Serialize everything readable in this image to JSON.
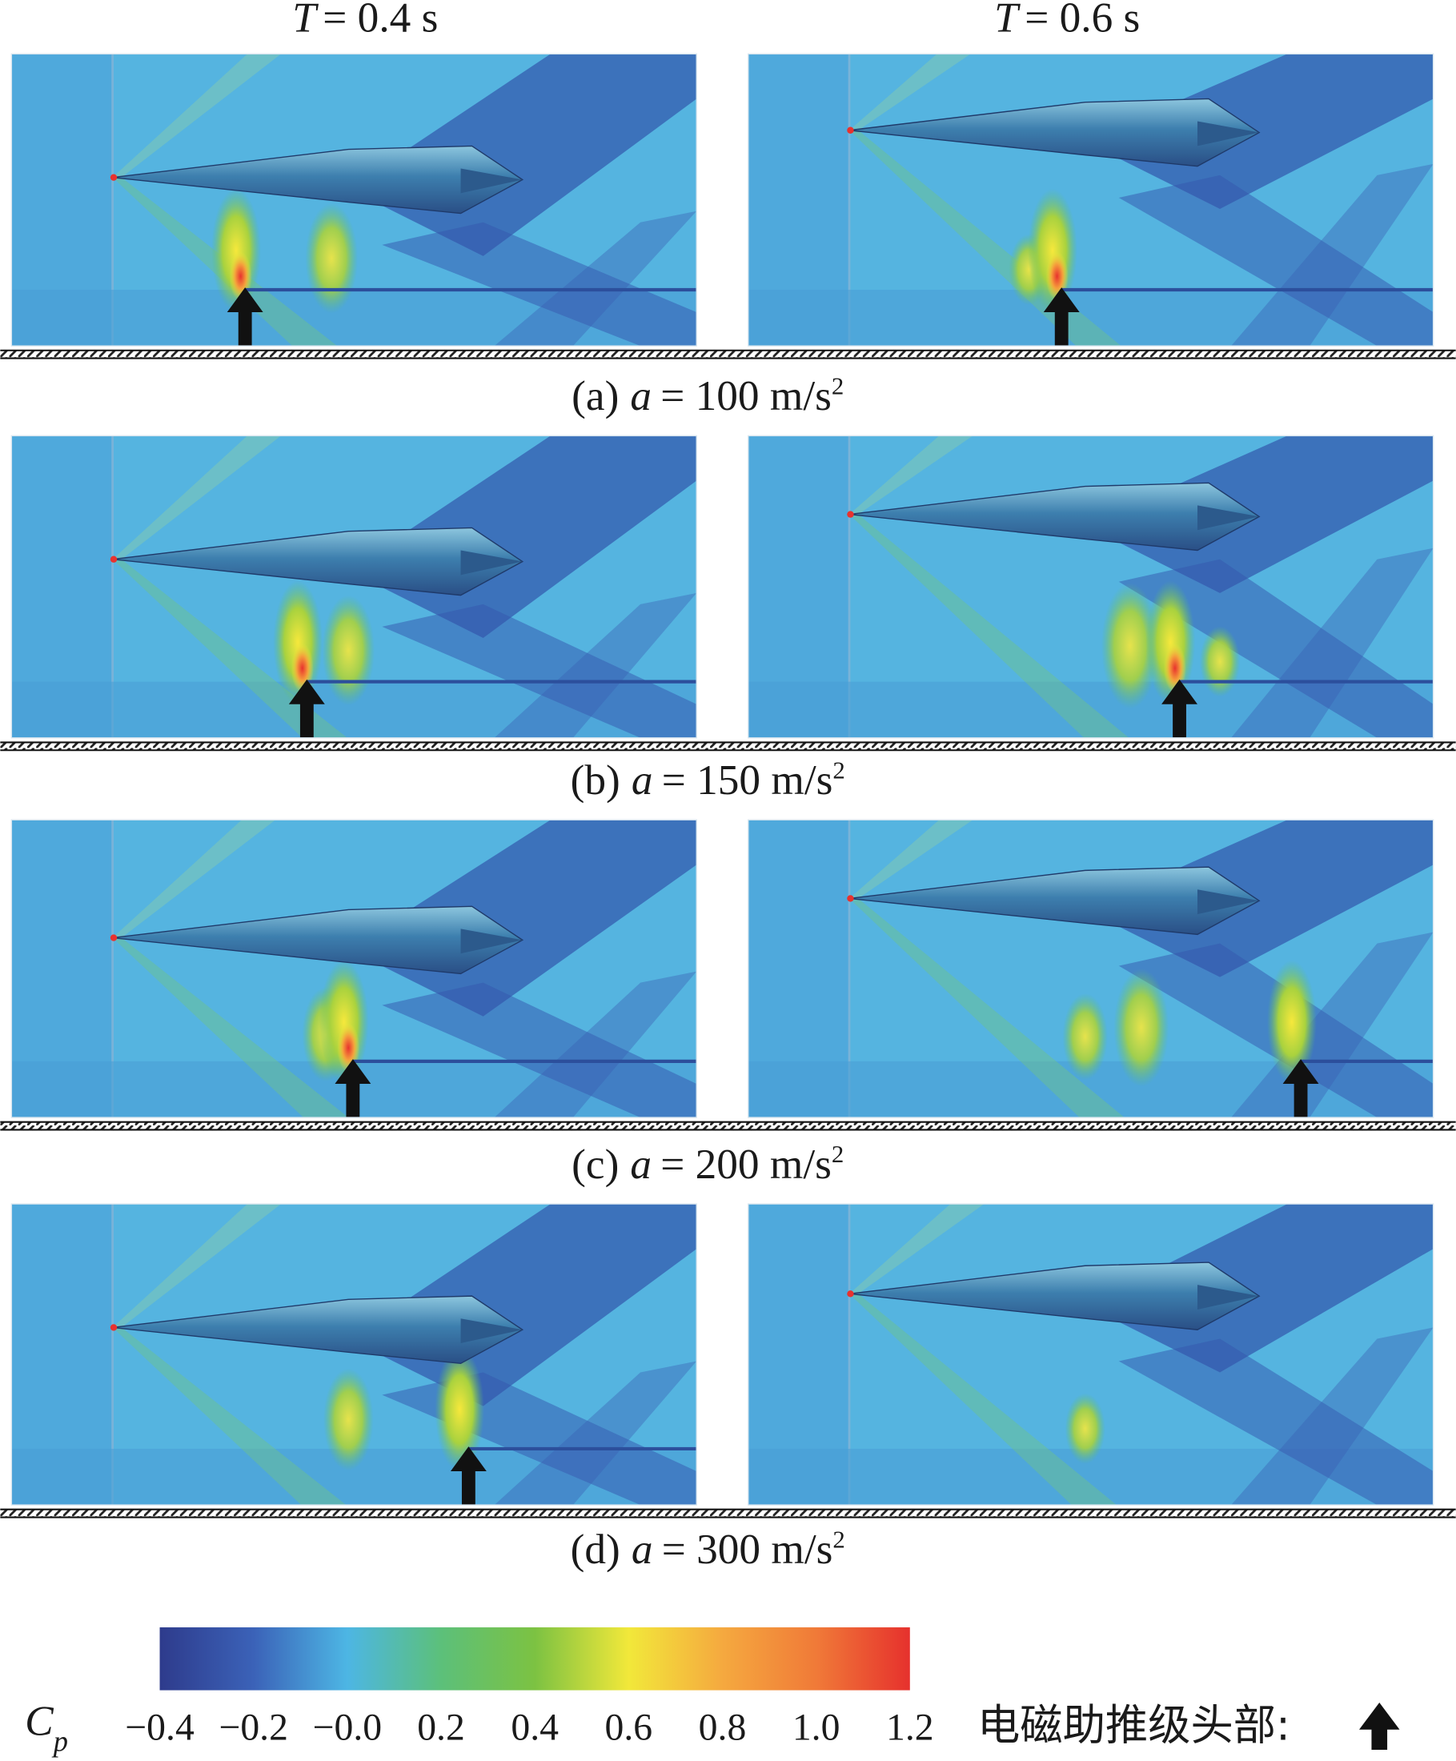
{
  "columns": [
    {
      "symbol": "T",
      "value": "= 0.4 s"
    },
    {
      "symbol": "T",
      "value": "= 0.6 s"
    }
  ],
  "rows": [
    {
      "label": "(a)",
      "symbol": "a",
      "value": "= 100 m/s",
      "exponent": "2"
    },
    {
      "label": "(b)",
      "symbol": "a",
      "value": "= 150 m/s",
      "exponent": "2"
    },
    {
      "label": "(c)",
      "symbol": "a",
      "value": "= 200 m/s",
      "exponent": "2"
    },
    {
      "label": "(d)",
      "symbol": "a",
      "value": "= 300 m/s",
      "exponent": "2"
    }
  ],
  "colorbar": {
    "symbol": "C",
    "subscript": "p",
    "range": [
      -0.4,
      1.2
    ],
    "ticks": [
      {
        "value": -0.4,
        "label": "−0.4"
      },
      {
        "value": -0.2,
        "label": "−0.2"
      },
      {
        "value": 0,
        "label": "−0.0"
      },
      0.2,
      0.4,
      0.6,
      0.8,
      {
        "value": 1,
        "label": "1.0"
      },
      1.2
    ],
    "colors": [
      "#2e3b8c",
      "#3b62b8",
      "#4db6e4",
      "#5cc07a",
      "#7cc242",
      "#f2e83a",
      "#f5a93f",
      "#f07a38",
      "#e6312d"
    ]
  },
  "legend": {
    "text": "电磁助推级头部:"
  }
}
